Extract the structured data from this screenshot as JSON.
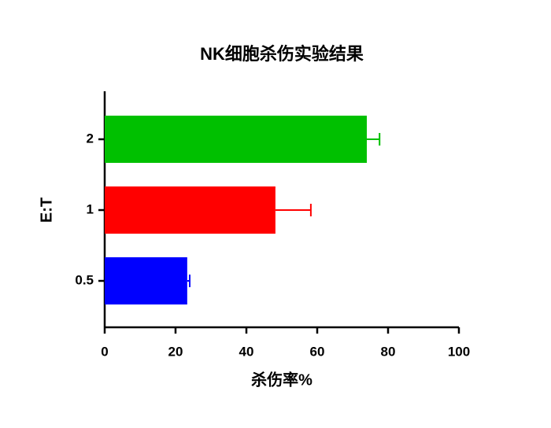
{
  "chart_data": {
    "type": "bar",
    "orientation": "horizontal",
    "title": "NK细胞杀伤实验结果",
    "x_label": "杀伤率%",
    "y_label": "E:T",
    "categories": [
      "0.5",
      "1",
      "2"
    ],
    "values": [
      23.3,
      48.2,
      74
    ],
    "errors": [
      0.7,
      10,
      3.6
    ],
    "colors": [
      "#0000ff",
      "#ff0000",
      "#00c000"
    ],
    "xlim": [
      0,
      100
    ],
    "xticks": [
      0,
      20,
      40,
      60,
      80,
      100
    ]
  }
}
